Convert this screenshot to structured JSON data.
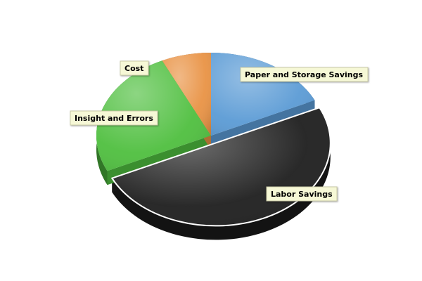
{
  "chart_data": {
    "type": "pie",
    "title": "",
    "slices": [
      {
        "label": "Paper and Storage Savings",
        "value": 18,
        "color": "#5b9bd5",
        "exploded": false
      },
      {
        "label": "Labor Savings",
        "value": 50,
        "color": "#1e1e1e",
        "exploded": true
      },
      {
        "label": "Insight and Errors",
        "value": 25,
        "color": "#4fbf3f",
        "exploded": false
      },
      {
        "label": "Cost",
        "value": 7,
        "color": "#e99345",
        "exploded": false
      }
    ],
    "style": "3d",
    "legend": "none",
    "labels": "callout boxes"
  }
}
